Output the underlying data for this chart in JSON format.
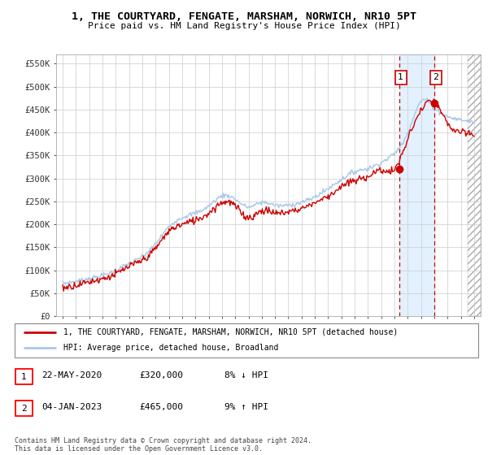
{
  "title": "1, THE COURTYARD, FENGATE, MARSHAM, NORWICH, NR10 5PT",
  "subtitle": "Price paid vs. HM Land Registry's House Price Index (HPI)",
  "ylabel_ticks": [
    "£0",
    "£50K",
    "£100K",
    "£150K",
    "£200K",
    "£250K",
    "£300K",
    "£350K",
    "£400K",
    "£450K",
    "£500K",
    "£550K"
  ],
  "ytick_values": [
    0,
    50000,
    100000,
    150000,
    200000,
    250000,
    300000,
    350000,
    400000,
    450000,
    500000,
    550000
  ],
  "ylim": [
    0,
    570000
  ],
  "xlim_start": 1994.5,
  "xlim_end": 2026.5,
  "legend_line1": "1, THE COURTYARD, FENGATE, MARSHAM, NORWICH, NR10 5PT (detached house)",
  "legend_line2": "HPI: Average price, detached house, Broadland",
  "annotation1_label": "1",
  "annotation1_date": "22-MAY-2020",
  "annotation1_price": "£320,000",
  "annotation1_hpi": "8% ↓ HPI",
  "annotation2_label": "2",
  "annotation2_date": "04-JAN-2023",
  "annotation2_price": "£465,000",
  "annotation2_hpi": "9% ↑ HPI",
  "footnote": "Contains HM Land Registry data © Crown copyright and database right 2024.\nThis data is licensed under the Open Government Licence v3.0.",
  "hpi_color": "#a8c8e8",
  "price_color": "#cc0000",
  "marker1_x": 2020.38,
  "marker1_y": 320000,
  "marker2_x": 2023.01,
  "marker2_y": 465000,
  "dashed_line1_x": 2020.38,
  "dashed_line2_x": 2023.01,
  "shade_color": "#ddeeff",
  "hatch_start": 2025.5
}
